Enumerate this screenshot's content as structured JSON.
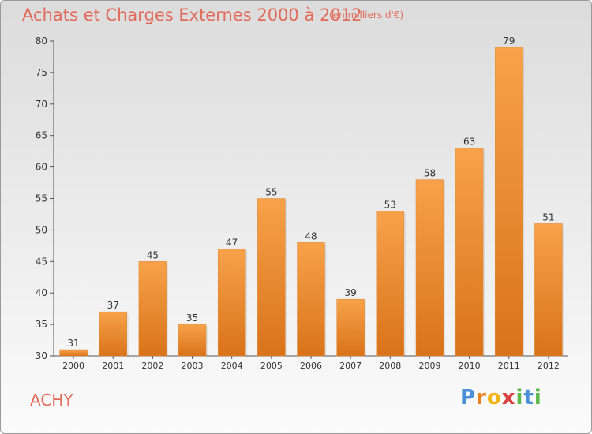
{
  "title": "Achats et Charges Externes 2000 à 2012",
  "subtitle": "(en milliers d'€)",
  "commune": "ACHY",
  "logo": "Proxiti",
  "colors": {
    "bar_light": "#f7a24a",
    "bar_dark": "#d9731a",
    "title": "#e26a5a"
  },
  "chart_data": {
    "type": "bar",
    "title": "Achats et Charges Externes 2000 à 2012",
    "subtitle": "(en milliers d'€)",
    "categories": [
      "2000",
      "2001",
      "2002",
      "2003",
      "2004",
      "2005",
      "2006",
      "2007",
      "2008",
      "2009",
      "2010",
      "2011",
      "2012"
    ],
    "values": [
      31,
      37,
      45,
      35,
      47,
      55,
      48,
      39,
      53,
      58,
      63,
      79,
      51
    ],
    "ylim": [
      30,
      80
    ],
    "yticks": [
      30,
      35,
      40,
      45,
      50,
      55,
      60,
      65,
      70,
      75,
      80
    ],
    "xlabel": "",
    "ylabel": "",
    "grid": false
  }
}
